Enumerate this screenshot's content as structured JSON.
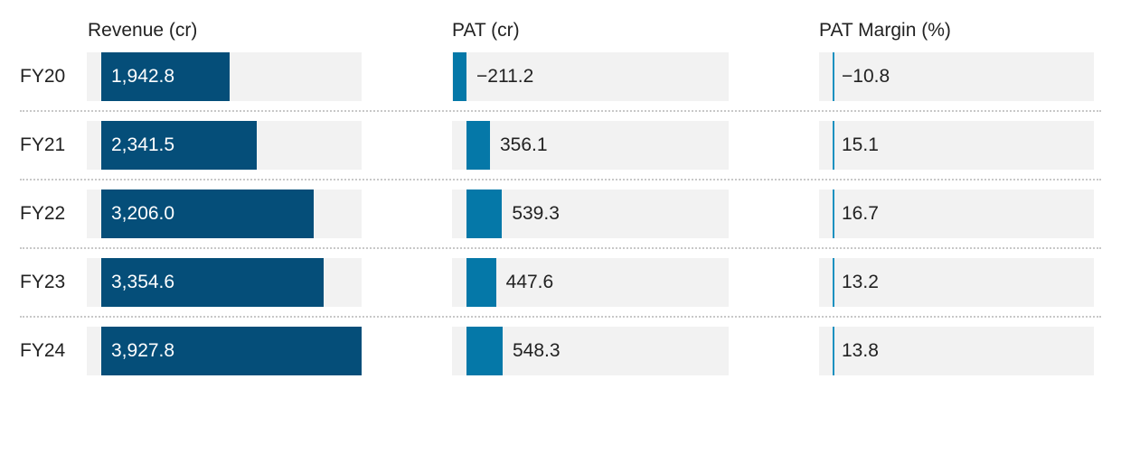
{
  "chart_data": {
    "type": "bar",
    "orientation": "horizontal",
    "categories": [
      "FY20",
      "FY21",
      "FY22",
      "FY23",
      "FY24"
    ],
    "series": [
      {
        "name": "Revenue (cr)",
        "values": [
          1942.8,
          2341.5,
          3206.0,
          3354.6,
          3927.8
        ],
        "labels": [
          "1,942.8",
          "2,341.5",
          "3,206.0",
          "3,354.6",
          "3,927.8"
        ],
        "color": "#054e79"
      },
      {
        "name": "PAT (cr)",
        "values": [
          -211.2,
          356.1,
          539.3,
          447.6,
          548.3
        ],
        "labels": [
          "−211.2",
          "356.1",
          "539.3",
          "447.6",
          "548.3"
        ],
        "color": "#0578a8"
      },
      {
        "name": "PAT Margin (%)",
        "values": [
          -10.8,
          15.1,
          16.7,
          13.2,
          13.8
        ],
        "labels": [
          "−10.8",
          "15.1",
          "16.7",
          "13.2",
          "13.8"
        ],
        "color": "#1c91c0"
      }
    ],
    "background_color": "#f2f2f2",
    "grid": false,
    "legend": "none"
  }
}
